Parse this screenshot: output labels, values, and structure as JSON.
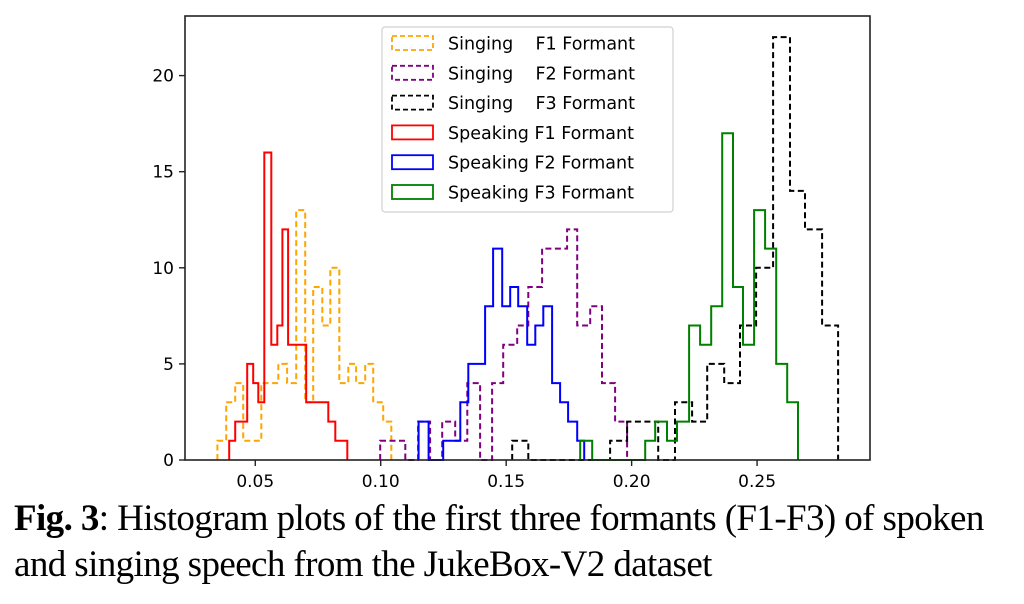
{
  "chart_data": {
    "type": "histogram",
    "title": "",
    "xlabel": "",
    "ylabel": "",
    "xlim": [
      0.022,
      0.295
    ],
    "ylim": [
      0,
      23.1
    ],
    "grid": false,
    "x_ticks": [
      0.05,
      0.1,
      0.15,
      0.2,
      0.25
    ],
    "x_tick_labels": [
      "0.05",
      "0.10",
      "0.15",
      "0.20",
      "0.25"
    ],
    "y_ticks": [
      0,
      5,
      10,
      15,
      20
    ],
    "y_tick_labels": [
      "0",
      "5",
      "10",
      "15",
      "20"
    ],
    "legend_position": "top-center",
    "series": [
      {
        "name": "Singing    F1 Formant",
        "color": "#ffa500",
        "style": "dashed",
        "bins": [
          [
            0.0349,
            0.0384,
            1
          ],
          [
            0.0384,
            0.042,
            3
          ],
          [
            0.042,
            0.0452,
            4
          ],
          [
            0.0452,
            0.0524,
            1
          ],
          [
            0.0524,
            0.0592,
            4
          ],
          [
            0.0592,
            0.0627,
            5
          ],
          [
            0.0627,
            0.0663,
            4
          ],
          [
            0.0663,
            0.0699,
            13
          ],
          [
            0.0699,
            0.0731,
            3
          ],
          [
            0.0731,
            0.0767,
            9
          ],
          [
            0.0767,
            0.0799,
            7
          ],
          [
            0.0799,
            0.0835,
            10
          ],
          [
            0.0835,
            0.0871,
            4
          ],
          [
            0.0871,
            0.0902,
            5
          ],
          [
            0.0902,
            0.0938,
            4
          ],
          [
            0.0938,
            0.097,
            5
          ],
          [
            0.097,
            0.101,
            3
          ],
          [
            0.101,
            0.1042,
            2
          ]
        ]
      },
      {
        "name": "Singing    F2 Formant",
        "color": "#800080",
        "style": "dashed",
        "bins": [
          [
            0.0998,
            0.1098,
            1
          ],
          [
            0.1098,
            0.1149,
            0
          ],
          [
            0.1149,
            0.1197,
            2
          ],
          [
            0.1197,
            0.1245,
            0
          ],
          [
            0.1245,
            0.1297,
            2
          ],
          [
            0.1297,
            0.1345,
            1
          ],
          [
            0.1345,
            0.1396,
            4
          ],
          [
            0.1396,
            0.1444,
            0
          ],
          [
            0.1444,
            0.1488,
            4
          ],
          [
            0.1488,
            0.1544,
            6
          ],
          [
            0.1544,
            0.1588,
            7
          ],
          [
            0.1588,
            0.1643,
            9
          ],
          [
            0.1643,
            0.1743,
            11
          ],
          [
            0.1743,
            0.1783,
            12
          ],
          [
            0.1783,
            0.1835,
            7
          ],
          [
            0.1835,
            0.1882,
            8
          ],
          [
            0.1882,
            0.1934,
            4
          ],
          [
            0.1934,
            0.1982,
            2
          ]
        ]
      },
      {
        "name": "Singing    F3 Formant",
        "color": "#000000",
        "style": "dashed",
        "bins": [
          [
            0.1524,
            0.1588,
            1
          ],
          [
            0.1588,
            0.1914,
            0
          ],
          [
            0.1914,
            0.1982,
            1
          ],
          [
            0.1982,
            0.2106,
            2
          ],
          [
            0.2106,
            0.2173,
            0
          ],
          [
            0.2173,
            0.2241,
            3
          ],
          [
            0.2241,
            0.2301,
            2
          ],
          [
            0.2301,
            0.2369,
            5
          ],
          [
            0.2369,
            0.2432,
            4
          ],
          [
            0.2432,
            0.2496,
            7
          ],
          [
            0.2496,
            0.2564,
            10
          ],
          [
            0.2564,
            0.2631,
            22
          ],
          [
            0.2631,
            0.2691,
            14
          ],
          [
            0.2691,
            0.2759,
            12
          ],
          [
            0.2759,
            0.2823,
            7
          ]
        ]
      },
      {
        "name": "Speaking F1 Formant",
        "color": "#ff0000",
        "style": "solid",
        "bins": [
          [
            0.0396,
            0.042,
            1
          ],
          [
            0.042,
            0.0468,
            2
          ],
          [
            0.0468,
            0.0492,
            5
          ],
          [
            0.0492,
            0.0512,
            4
          ],
          [
            0.0512,
            0.0536,
            3
          ],
          [
            0.0536,
            0.0564,
            16
          ],
          [
            0.0564,
            0.0588,
            6
          ],
          [
            0.0588,
            0.0608,
            7
          ],
          [
            0.0608,
            0.0631,
            12
          ],
          [
            0.0631,
            0.0703,
            6
          ],
          [
            0.0703,
            0.0791,
            3
          ],
          [
            0.0791,
            0.0819,
            2
          ],
          [
            0.0819,
            0.0867,
            1
          ]
        ]
      },
      {
        "name": "Speaking F2 Formant",
        "color": "#0000ff",
        "style": "solid",
        "bins": [
          [
            0.1151,
            0.1191,
            2
          ],
          [
            0.1191,
            0.1249,
            0
          ],
          [
            0.1249,
            0.1317,
            1
          ],
          [
            0.1317,
            0.1349,
            3
          ],
          [
            0.1349,
            0.1416,
            5
          ],
          [
            0.1416,
            0.1448,
            8
          ],
          [
            0.1448,
            0.1484,
            11
          ],
          [
            0.1484,
            0.1516,
            8
          ],
          [
            0.1516,
            0.1548,
            9
          ],
          [
            0.1548,
            0.1584,
            8
          ],
          [
            0.1584,
            0.1616,
            6
          ],
          [
            0.1616,
            0.1648,
            7
          ],
          [
            0.1648,
            0.1683,
            8
          ],
          [
            0.1683,
            0.1715,
            4
          ],
          [
            0.1715,
            0.1747,
            3
          ],
          [
            0.1747,
            0.1783,
            2
          ],
          [
            0.1783,
            0.1811,
            1
          ]
        ]
      },
      {
        "name": "Speaking F3 Formant",
        "color": "#008000",
        "style": "solid",
        "bins": [
          [
            0.1795,
            0.1843,
            1
          ],
          [
            0.1843,
            0.2054,
            0
          ],
          [
            0.2054,
            0.2094,
            1
          ],
          [
            0.2094,
            0.2141,
            2
          ],
          [
            0.2141,
            0.2181,
            1
          ],
          [
            0.2181,
            0.2229,
            2
          ],
          [
            0.2229,
            0.2273,
            7
          ],
          [
            0.2273,
            0.2317,
            6
          ],
          [
            0.2317,
            0.2361,
            8
          ],
          [
            0.2361,
            0.2404,
            17
          ],
          [
            0.2404,
            0.2444,
            9
          ],
          [
            0.2444,
            0.2488,
            6
          ],
          [
            0.2488,
            0.2532,
            13
          ],
          [
            0.2532,
            0.2576,
            11
          ],
          [
            0.2576,
            0.262,
            5
          ],
          [
            0.262,
            0.2663,
            3
          ]
        ]
      }
    ]
  },
  "caption": {
    "label": "Fig. 3",
    "text": ": Histogram plots of the first three formants (F1-F3) of spoken and singing speech from the JukeBox-V2 dataset"
  }
}
